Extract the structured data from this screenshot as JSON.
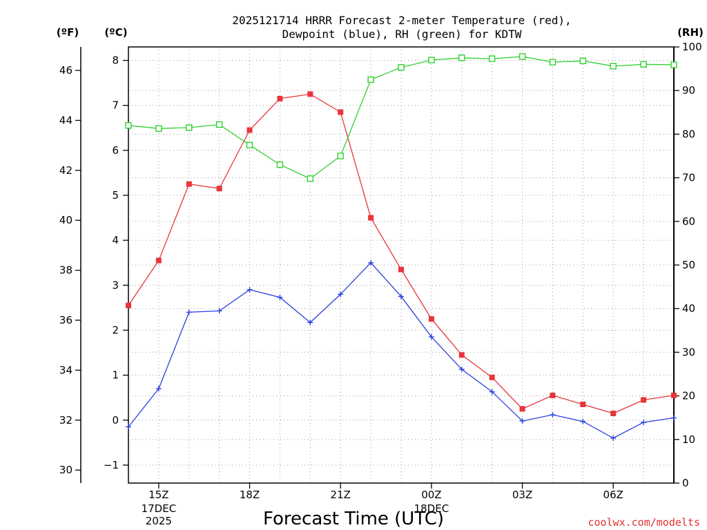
{
  "colors": {
    "temperature": "#e8353b",
    "dewpoint": "#2a3fdd",
    "rh": "#2fd12f",
    "grid": "#9a9a9a",
    "credit": "#e03030"
  },
  "credit": "coolwx.com/modelts",
  "chart_data": {
    "type": "line",
    "title_line1": "2025121714 HRRR Forecast 2-meter Temperature (red),",
    "title_line2": "Dewpoint (blue), RH (green) for KDTW",
    "xlabel": "Forecast Time (UTC)",
    "left_unit_f": "(ºF)",
    "left_unit_c": "(ºC)",
    "right_unit": "(RH)",
    "x_hours": [
      14,
      15,
      16,
      17,
      18,
      19,
      20,
      21,
      22,
      23,
      24,
      25,
      26,
      27,
      28,
      29,
      30,
      31,
      32
    ],
    "xlim": [
      14,
      32
    ],
    "x_ticks": [
      {
        "hour": 15,
        "label": "15Z",
        "date": "17DEC",
        "year": "2025"
      },
      {
        "hour": 18,
        "label": "18Z"
      },
      {
        "hour": 21,
        "label": "21Z"
      },
      {
        "hour": 24,
        "label": "00Z",
        "date": "18DEC"
      },
      {
        "hour": 27,
        "label": "03Z"
      },
      {
        "hour": 30,
        "label": "06Z"
      }
    ],
    "celsius_axis": {
      "lim": [
        -1.4,
        8.3
      ],
      "ticks": [
        -1,
        0,
        1,
        2,
        3,
        4,
        5,
        6,
        7,
        8
      ],
      "labels": [
        "−1",
        "0",
        "1",
        "2",
        "3",
        "4",
        "5",
        "6",
        "7",
        "8"
      ]
    },
    "fahrenheit_axis": {
      "ticks": [
        30,
        32,
        34,
        36,
        38,
        40,
        42,
        44,
        46
      ],
      "labels": [
        "30",
        "32",
        "34",
        "36",
        "38",
        "40",
        "42",
        "44",
        "46"
      ]
    },
    "rh_axis": {
      "lim": [
        0,
        100
      ],
      "ticks": [
        0,
        10,
        20,
        30,
        40,
        50,
        60,
        70,
        80,
        90,
        100
      ],
      "labels": [
        "0",
        "10",
        "20",
        "30",
        "40",
        "50",
        "60",
        "70",
        "80",
        "90",
        "100"
      ]
    },
    "series": [
      {
        "name": "Temperature",
        "units": "C",
        "marker": "filled-square",
        "values": [
          2.55,
          3.55,
          5.25,
          5.15,
          6.45,
          7.15,
          7.25,
          6.85,
          4.5,
          3.35,
          2.25,
          1.45,
          0.95,
          0.25,
          0.55,
          0.35,
          0.15,
          0.45,
          0.55
        ]
      },
      {
        "name": "Dewpoint",
        "units": "C",
        "marker": "plus",
        "values": [
          -0.15,
          0.7,
          2.4,
          2.43,
          2.9,
          2.73,
          2.17,
          2.8,
          3.5,
          2.75,
          1.85,
          1.13,
          0.63,
          -0.02,
          0.12,
          -0.03,
          -0.4,
          -0.05,
          0.05
        ]
      },
      {
        "name": "RH",
        "units": "%",
        "marker": "open-square",
        "values": [
          82,
          81.3,
          81.5,
          82.2,
          77.5,
          73,
          69.8,
          75,
          92.5,
          95.3,
          97,
          97.5,
          97.3,
          97.8,
          96.5,
          96.8,
          95.6,
          96,
          95.9
        ]
      }
    ]
  }
}
